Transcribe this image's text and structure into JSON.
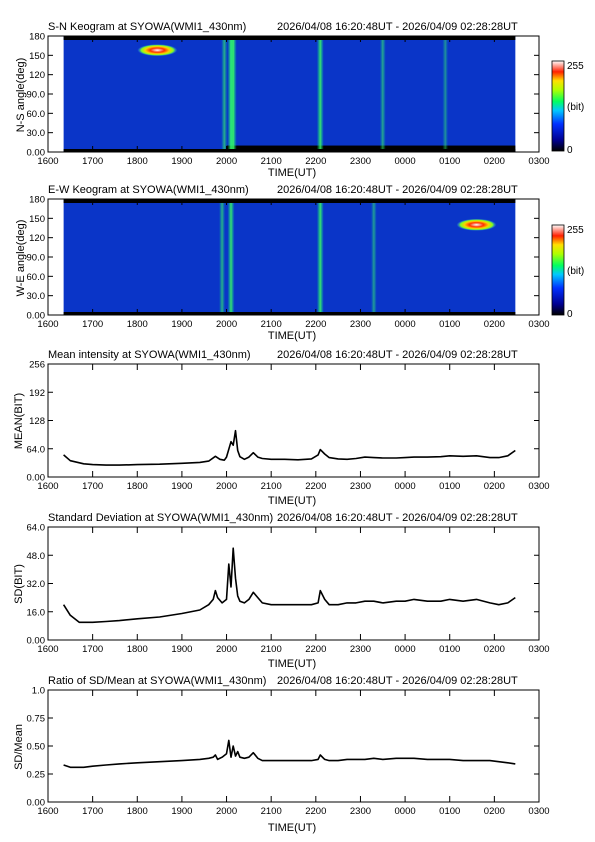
{
  "time_range": "2026/04/08 16:20:48UT - 2026/04/09 02:28:28UT",
  "x_axis": {
    "label": "TIME(UT)",
    "ticks": [
      "1600",
      "1700",
      "1800",
      "1900",
      "2000",
      "2100",
      "2200",
      "2300",
      "0000",
      "0100",
      "0200",
      "0300"
    ]
  },
  "colorbar": {
    "min_label": "0",
    "max_label": "255",
    "unit_label": "(bit)"
  },
  "colors": {
    "keogram_background": "#0a35c8",
    "line": "#000000",
    "no_data": "#000000"
  },
  "chart_data": [
    {
      "type": "heatmap",
      "title": "S-N Keogram at SYOWA(WMI1_430nm)",
      "ylabel": "N-S angle(deg)",
      "xlabel": "TIME(UT)",
      "xlim": [
        16.0,
        27.0
      ],
      "data_range": [
        16.35,
        26.47
      ],
      "ylim": [
        0,
        180
      ],
      "yticks": [
        "0.00",
        "30.0",
        "60.0",
        "90.0",
        "120",
        "150",
        "180"
      ],
      "clim": [
        0,
        255
      ],
      "features": [
        {
          "kind": "spot",
          "x": 18.45,
          "y": 158,
          "value": 255
        },
        {
          "kind": "band",
          "x": 19.95,
          "value": 120
        },
        {
          "kind": "band",
          "x": 20.1,
          "value": 180
        },
        {
          "kind": "band",
          "x": 20.15,
          "value": 170
        },
        {
          "kind": "band",
          "x": 22.1,
          "value": 170
        },
        {
          "kind": "band",
          "x": 23.5,
          "value": 110
        },
        {
          "kind": "band",
          "x": 24.9,
          "value": 90
        }
      ]
    },
    {
      "type": "heatmap",
      "title": "E-W Keogram at SYOWA(WMI1_430nm)",
      "ylabel": "W-E angle(deg)",
      "xlabel": "TIME(UT)",
      "xlim": [
        16.0,
        27.0
      ],
      "data_range": [
        16.35,
        26.47
      ],
      "ylim": [
        0,
        180
      ],
      "yticks": [
        "0.00",
        "30.0",
        "60.0",
        "90.0",
        "120",
        "150",
        "180"
      ],
      "clim": [
        0,
        255
      ],
      "features": [
        {
          "kind": "spot",
          "x": 25.6,
          "y": 140,
          "value": 255
        },
        {
          "kind": "band",
          "x": 20.1,
          "value": 170
        },
        {
          "kind": "band",
          "x": 22.1,
          "value": 170
        },
        {
          "kind": "band",
          "x": 19.9,
          "value": 120
        },
        {
          "kind": "band",
          "x": 23.3,
          "value": 100
        }
      ]
    },
    {
      "type": "line",
      "title": "Mean intensity at SYOWA(WMI1_430nm)",
      "ylabel": "MEAN(BIT)",
      "xlabel": "TIME(UT)",
      "xlim": [
        16.0,
        27.0
      ],
      "ylim": [
        0,
        256
      ],
      "yticks": [
        "0.00",
        "64.0",
        "128",
        "192",
        "256"
      ],
      "series": [
        {
          "x": [
            16.35,
            16.5,
            16.8,
            17.0,
            17.3,
            17.6,
            18.0,
            18.5,
            19.0,
            19.4,
            19.6,
            19.75,
            19.85,
            19.95,
            20.0,
            20.1,
            20.15,
            20.2,
            20.25,
            20.3,
            20.4,
            20.5,
            20.6,
            20.7,
            20.8,
            21.0,
            21.3,
            21.6,
            21.9,
            22.05,
            22.1,
            22.2,
            22.3,
            22.5,
            22.7,
            22.9,
            23.1,
            23.3,
            23.5,
            23.8,
            24.0,
            24.2,
            24.5,
            24.8,
            25.0,
            25.3,
            25.6,
            25.9,
            26.1,
            26.3,
            26.47
          ],
          "y": [
            50,
            37,
            30,
            28,
            27,
            27,
            28,
            29,
            31,
            33,
            36,
            47,
            40,
            38,
            45,
            80,
            72,
            105,
            60,
            46,
            40,
            45,
            55,
            45,
            42,
            40,
            40,
            39,
            41,
            50,
            62,
            52,
            44,
            41,
            40,
            42,
            45,
            44,
            43,
            43,
            44,
            45,
            45,
            46,
            48,
            47,
            48,
            44,
            44,
            48,
            60
          ]
        }
      ]
    },
    {
      "type": "line",
      "title": "Standard Deviation at SYOWA(WMI1_430nm)",
      "ylabel": "SD(BIT)",
      "xlabel": "TIME(UT)",
      "xlim": [
        16.0,
        27.0
      ],
      "ylim": [
        0,
        64
      ],
      "yticks": [
        "0.00",
        "16.0",
        "32.0",
        "48.0",
        "64.0"
      ],
      "series": [
        {
          "x": [
            16.35,
            16.5,
            16.7,
            17.0,
            17.3,
            17.6,
            18.0,
            18.5,
            19.0,
            19.4,
            19.6,
            19.7,
            19.75,
            19.8,
            19.9,
            20.0,
            20.05,
            20.1,
            20.15,
            20.2,
            20.25,
            20.3,
            20.4,
            20.5,
            20.6,
            20.7,
            20.8,
            21.0,
            21.3,
            21.6,
            21.9,
            22.05,
            22.1,
            22.2,
            22.3,
            22.5,
            22.7,
            22.9,
            23.1,
            23.3,
            23.5,
            23.8,
            24.0,
            24.2,
            24.5,
            24.8,
            25.0,
            25.3,
            25.6,
            25.9,
            26.1,
            26.3,
            26.47
          ],
          "y": [
            20,
            14,
            10,
            10,
            10.5,
            11,
            12,
            13,
            15,
            17,
            20,
            23,
            28,
            24,
            21,
            23,
            43,
            30,
            52,
            35,
            25,
            22,
            21,
            23,
            27,
            24,
            21,
            20,
            20,
            20,
            20,
            21,
            28,
            23,
            20,
            20,
            21,
            21,
            22,
            22,
            21,
            22,
            22,
            23,
            22,
            22,
            23,
            22,
            23,
            21,
            20,
            21,
            24
          ]
        }
      ]
    },
    {
      "type": "line",
      "title": "Ratio of SD/Mean at SYOWA(WMI1_430nm)",
      "ylabel": "SD/Mean",
      "xlabel": "TIME(UT)",
      "xlim": [
        16.0,
        27.0
      ],
      "ylim": [
        0,
        1.0
      ],
      "yticks": [
        "0.00",
        "0.25",
        "0.50",
        "0.75",
        "1.0"
      ],
      "series": [
        {
          "x": [
            16.35,
            16.5,
            16.8,
            17.0,
            17.3,
            17.6,
            18.0,
            18.5,
            19.0,
            19.4,
            19.6,
            19.7,
            19.75,
            19.8,
            19.9,
            20.0,
            20.05,
            20.1,
            20.15,
            20.2,
            20.25,
            20.3,
            20.4,
            20.5,
            20.6,
            20.7,
            20.8,
            21.0,
            21.3,
            21.6,
            21.9,
            22.05,
            22.1,
            22.2,
            22.3,
            22.5,
            22.7,
            22.9,
            23.1,
            23.3,
            23.5,
            23.8,
            24.0,
            24.2,
            24.5,
            24.8,
            25.0,
            25.3,
            25.6,
            25.9,
            26.1,
            26.3,
            26.47
          ],
          "y": [
            0.33,
            0.31,
            0.31,
            0.32,
            0.33,
            0.34,
            0.35,
            0.36,
            0.37,
            0.38,
            0.39,
            0.4,
            0.42,
            0.38,
            0.4,
            0.43,
            0.55,
            0.4,
            0.5,
            0.41,
            0.45,
            0.4,
            0.39,
            0.4,
            0.44,
            0.39,
            0.37,
            0.37,
            0.37,
            0.37,
            0.37,
            0.38,
            0.42,
            0.38,
            0.37,
            0.37,
            0.38,
            0.38,
            0.38,
            0.39,
            0.38,
            0.39,
            0.39,
            0.39,
            0.38,
            0.38,
            0.38,
            0.37,
            0.37,
            0.37,
            0.36,
            0.35,
            0.34
          ]
        }
      ]
    }
  ]
}
